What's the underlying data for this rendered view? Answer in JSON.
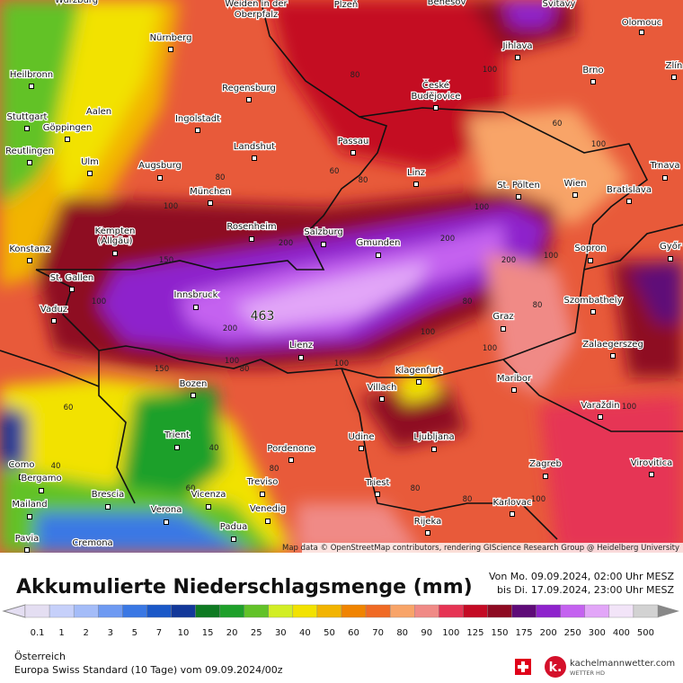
{
  "map": {
    "cities": [
      "Würzburg",
      "Weiden in der",
      "Oberpfalz",
      "Plzeň",
      "Benešov",
      "Svitavy",
      "Olomouc",
      "Nürnberg",
      "Jihlava",
      "Zlín",
      "Heilbronn",
      "Regensburg",
      "České",
      "Budějovice",
      "Brno",
      "Aalen",
      "Ingolstadt",
      "Stuttgart",
      "Göppingen",
      "Passau",
      "Landshut",
      "Reutlingen",
      "Ulm",
      "Augsburg",
      "Linz",
      "Trnava",
      "St. Pölten",
      "Wien",
      "Bratislava",
      "München",
      "Kempten",
      "(Allgäu)",
      "Rosenheim",
      "Gmunden",
      "Salzburg",
      "Sopron",
      "Győr",
      "Konstanz",
      "St. Gallen",
      "Innsbruck",
      "Szombathely",
      "Vaduz",
      "Graz",
      "Zalaegerszeg",
      "Lienz",
      "Klagenfurt",
      "Villach",
      "Maribor",
      "Bozen",
      "Varaždin",
      "Trient",
      "Udine",
      "Ljubljana",
      "Pordenone",
      "Zagreb",
      "Virovitica",
      "Como",
      "Bergamo",
      "Triest",
      "Brescia",
      "Vicenza",
      "Treviso",
      "Karlovac",
      "Mailand",
      "Verona",
      "Venedig",
      "Padua",
      "Rijeka",
      "Pavia",
      "Cremona"
    ],
    "contour_labels": [
      80,
      100,
      60,
      80,
      100,
      60,
      100,
      80,
      100,
      100,
      80,
      80,
      200,
      200,
      150,
      200,
      100,
      150,
      100,
      100,
      200,
      100,
      80,
      60,
      40,
      40,
      60,
      80,
      80,
      100,
      100,
      80,
      100
    ],
    "maximum": 463,
    "attribution": "Map data © OpenStreetMap contributors, rendering GIScience Research Group @ Heidelberg University"
  },
  "legend": {
    "title": "Akkumulierte Niederschlagsmenge (mm)",
    "period_from": "Von Mo. 09.09.2024, 02:00 Uhr MESZ",
    "period_to": "bis Di. 17.09.2024, 23:00 Uhr MESZ",
    "scale": [
      0.1,
      1,
      2,
      3,
      5,
      7,
      10,
      15,
      20,
      25,
      30,
      40,
      50,
      60,
      70,
      80,
      90,
      100,
      125,
      150,
      175,
      200,
      250,
      300,
      400,
      500
    ],
    "colors": [
      "#e4def2",
      "#c6d0fa",
      "#a4bcf8",
      "#6e9af2",
      "#3a78e4",
      "#1a58c8",
      "#12389a",
      "#0e7a22",
      "#1ea02a",
      "#62c228",
      "#d2ee24",
      "#f2e200",
      "#f2b400",
      "#f08400",
      "#f06a24",
      "#f8a468",
      "#f08a86",
      "#e63454",
      "#c40a24",
      "#8e0a22",
      "#5e0a78",
      "#8e22cc",
      "#c462f0",
      "#e2a6f8",
      "#f2e4f8",
      "#d2d2d2"
    ]
  },
  "footer": {
    "region": "Österreich",
    "model": "Europa Swiss Standard (10 Tage) vom 09.09.2024/00z",
    "brand": "kachelmannwetter.com",
    "brand_sub": "WETTER HD"
  }
}
